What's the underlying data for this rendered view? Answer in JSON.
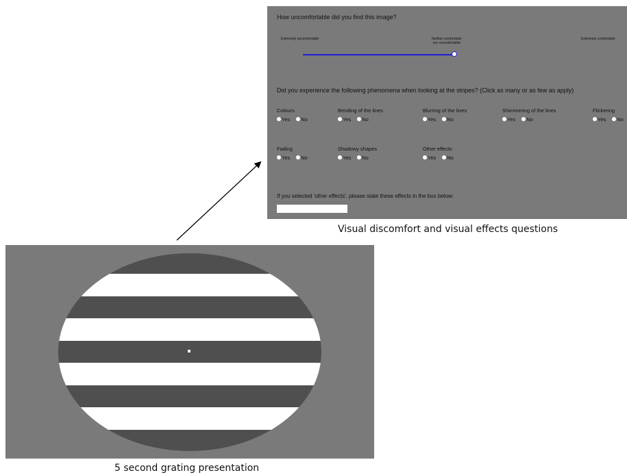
{
  "questionnaire": {
    "question1": "How uncomfortable did you find this image?",
    "scale_left": "Extremely uncomfortable",
    "scale_mid_line1": "Neither comfortable",
    "scale_mid_line2": "nor uncomfortable",
    "scale_right": "Extremely comfortable",
    "slider_value": 0.44,
    "question2": "Did you experience the following phenomena when looking at the stripes? (Click as many or as few as apply)",
    "phenomena": [
      {
        "label": "Colours",
        "yes": "Yes",
        "no": "No"
      },
      {
        "label": "Bending of the lines",
        "yes": "Yes",
        "no": "No"
      },
      {
        "label": "Blurring of the lines",
        "yes": "Yes",
        "no": "No"
      },
      {
        "label": "Shimmering of the lines",
        "yes": "Yes",
        "no": "No"
      },
      {
        "label": "Flickering",
        "yes": "Yes",
        "no": "No"
      },
      {
        "label": "Fading",
        "yes": "Yes",
        "no": "No"
      },
      {
        "label": "Shadowy shapes",
        "yes": "Yes",
        "no": "No"
      },
      {
        "label": "Other effects",
        "yes": "Yes",
        "no": "No"
      }
    ],
    "question3": "If you selected 'other effects', please state these effects in the box below:",
    "other_effects_value": ""
  },
  "captions": {
    "questions": "Visual discomfort and visual effects questions",
    "grating": "5 second grating presentation"
  },
  "colors": {
    "panel_bg": "#7a7a7a",
    "slider": "#1f1fd6",
    "stripe_dark": "#4f4f4f",
    "stripe_light": "#ffffff"
  }
}
